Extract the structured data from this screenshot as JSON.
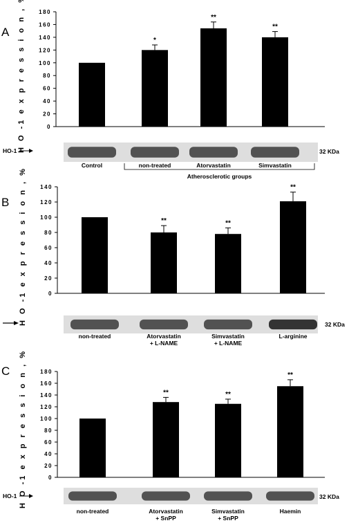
{
  "chart_data": [
    {
      "type": "bar",
      "panel": "A",
      "ylabel": "H O -1  e x p r e s s i o n , %",
      "ylim": [
        0,
        180
      ],
      "yticks": [
        "0",
        "20",
        "40",
        "60",
        "80",
        "100",
        "120",
        "140",
        "160",
        "180"
      ],
      "categories": [
        "Control",
        "non-treated",
        "Atorvastatin",
        "Simvastatin"
      ],
      "values": [
        100,
        120,
        154,
        140
      ],
      "errors": [
        0,
        8,
        10,
        9
      ],
      "significance": [
        "",
        "*",
        "**",
        "**"
      ],
      "blot_label": "HO-1",
      "kda": "32 KDa",
      "group_label": "Atherosclerotic groups"
    },
    {
      "type": "bar",
      "panel": "B",
      "ylabel": "H O -1  e x p r e s s i o n , %",
      "ylim": [
        0,
        140
      ],
      "yticks": [
        "0",
        "20",
        "40",
        "60",
        "80",
        "100",
        "120",
        "140"
      ],
      "categories": [
        "non-treated",
        "Atorvastatin\n+ L-NAME",
        "Simvastatin\n+ L-NAME",
        "L-arginine"
      ],
      "values": [
        100,
        80,
        78,
        121
      ],
      "errors": [
        0,
        9,
        8,
        12
      ],
      "significance": [
        "",
        "**",
        "**",
        "**"
      ],
      "blot_label": "",
      "kda": "32 KDa"
    },
    {
      "type": "bar",
      "panel": "C",
      "ylabel": "H O -1  e x p r e s s i o n , %",
      "ylim": [
        0,
        180
      ],
      "yticks": [
        "0",
        "20",
        "40",
        "60",
        "80",
        "100",
        "120",
        "140",
        "160",
        "180"
      ],
      "categories": [
        "non-treated",
        "Atorvastatin\n+ SnPP",
        "Simvastatin\n+ SnPP",
        "Haemin"
      ],
      "values": [
        100,
        128,
        125,
        155
      ],
      "errors": [
        0,
        8,
        8,
        11
      ],
      "significance": [
        "",
        "**",
        "**",
        "**"
      ],
      "blot_label": "HO-1",
      "kda": "32 KDa"
    }
  ]
}
